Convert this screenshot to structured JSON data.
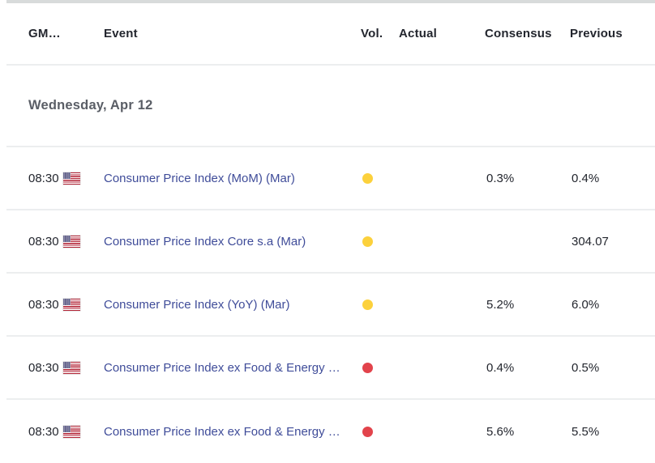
{
  "table": {
    "columns": {
      "gmt": "GM…",
      "event": "Event",
      "vol": "Vol.",
      "actual": "Actual",
      "consensus": "Consensus",
      "previous": "Previous"
    },
    "date_header": "Wednesday, Apr 12",
    "colors": {
      "event_link": "#3f4c99",
      "volatility_medium": "#fcd13c",
      "volatility_high": "#e2434b",
      "divider": "#eceeef"
    },
    "rows": [
      {
        "time": "08:30",
        "country": "United States",
        "event": "Consumer Price Index (MoM) (Mar)",
        "volatility": "medium",
        "actual": "",
        "consensus": "0.3%",
        "previous": "0.4%"
      },
      {
        "time": "08:30",
        "country": "United States",
        "event": "Consumer Price Index Core s.a (Mar)",
        "volatility": "medium",
        "actual": "",
        "consensus": "",
        "previous": "304.07"
      },
      {
        "time": "08:30",
        "country": "United States",
        "event": "Consumer Price Index (YoY) (Mar)",
        "volatility": "medium",
        "actual": "",
        "consensus": "5.2%",
        "previous": "6.0%"
      },
      {
        "time": "08:30",
        "country": "United States",
        "event": "Consumer Price Index ex Food & Energy …",
        "volatility": "high",
        "actual": "",
        "consensus": "0.4%",
        "previous": "0.5%"
      },
      {
        "time": "08:30",
        "country": "United States",
        "event": "Consumer Price Index ex Food & Energy …",
        "volatility": "high",
        "actual": "",
        "consensus": "5.6%",
        "previous": "5.5%"
      }
    ]
  }
}
